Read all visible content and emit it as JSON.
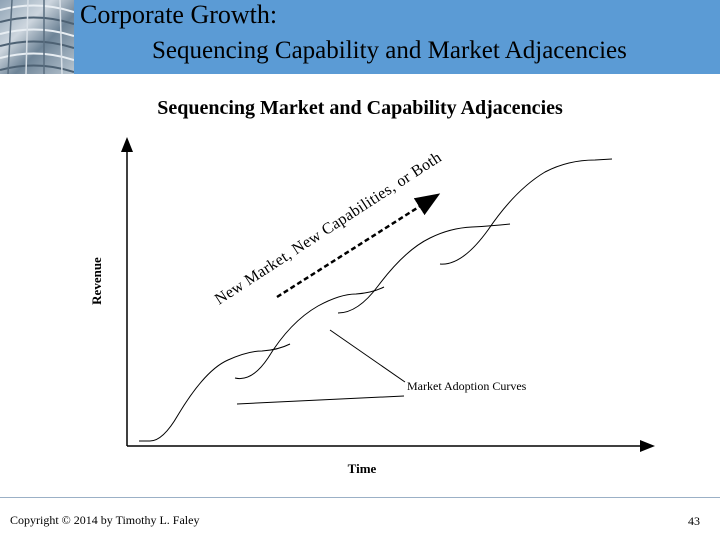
{
  "slide": {
    "title": "Corporate Growth:",
    "subtitle": "Sequencing Capability and Market Adjacencies"
  },
  "diagram": {
    "title": "Sequencing Market and Capability Adjacencies",
    "y_axis_label": "Revenue",
    "x_axis_label": "Time",
    "diagonal_label": "New Market, New Capabilities, or Both",
    "callout_label": "Market Adoption Curves"
  },
  "footer": {
    "copyright": "Copyright © 2014 by Timothy L. Faley",
    "page_number": "43"
  },
  "colors": {
    "header_bar": "#5b9bd5",
    "curve": "#000000"
  }
}
